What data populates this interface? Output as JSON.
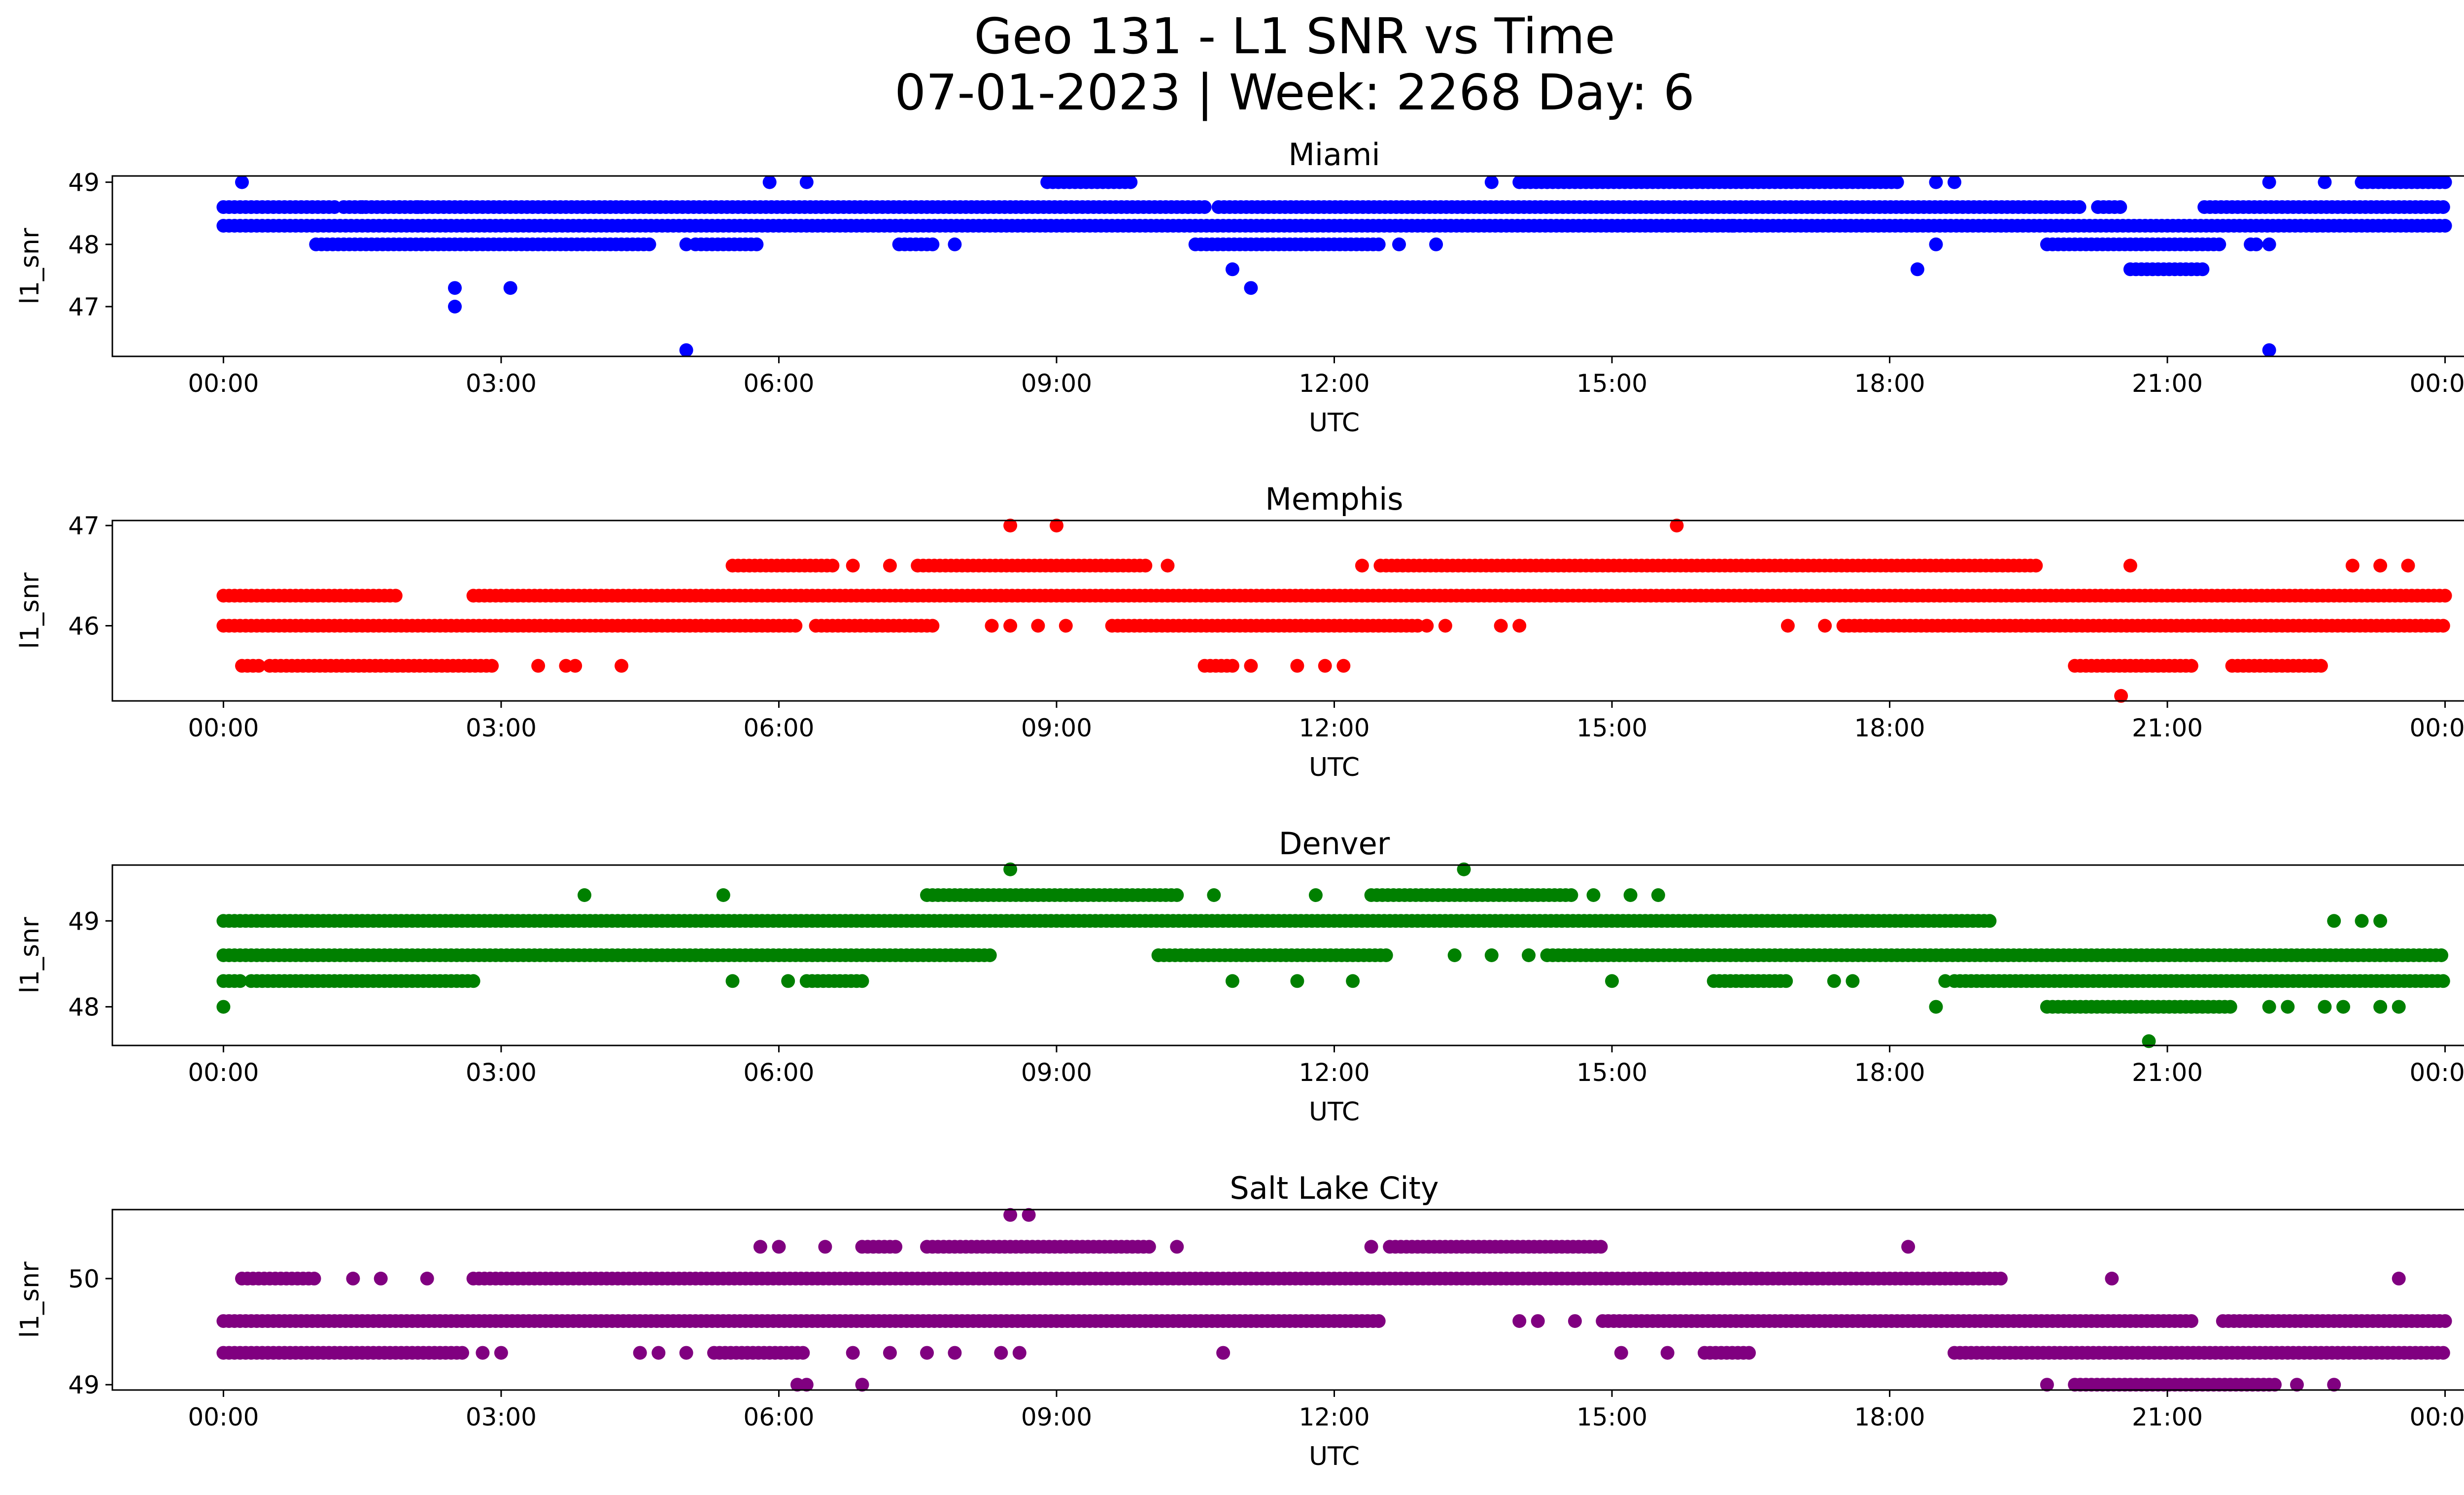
{
  "figure": {
    "title_line1": "Geo 131 - L1 SNR vs Time",
    "title_line2": "07-01-2023 | Week: 2268 Day: 6"
  },
  "chart_data": [
    {
      "type": "scatter",
      "title": "Miami",
      "xlabel": "UTC",
      "ylabel": "l1_snr",
      "color": "#0000ff",
      "x_ticks": [
        "00:00",
        "03:00",
        "06:00",
        "09:00",
        "12:00",
        "15:00",
        "18:00",
        "21:00",
        "00:00"
      ],
      "x_range_hours": [
        -1.2,
        25.2
      ],
      "y_ticks": [
        49,
        47,
        48
      ],
      "y_tick_values": [
        49,
        47,
        48
      ],
      "ylim": [
        46.2,
        49.1
      ],
      "bands": [
        {
          "y": 48.6,
          "segments": [
            [
              0.0,
              1.2
            ],
            [
              1.3,
              10.6
            ],
            [
              10.75,
              20.1
            ],
            [
              20.25,
              20.5
            ],
            [
              21.4,
              24.0
            ]
          ]
        },
        {
          "y": 48.3,
          "segments": [
            [
              0.0,
              24.0
            ]
          ]
        },
        {
          "y": 48.0,
          "segments": [
            [
              1.0,
              4.6
            ],
            [
              5.1,
              5.8
            ],
            [
              7.3,
              7.7
            ],
            [
              10.5,
              12.5
            ],
            [
              19.7,
              21.6
            ],
            [
              21.9,
              22.0
            ]
          ]
        },
        {
          "y": 49.0,
          "segments": [
            [
              8.9,
              9.8
            ],
            [
              14.0,
              18.1
            ],
            [
              23.1,
              24.0
            ]
          ]
        },
        {
          "y": 47.6,
          "segments": [
            [
              20.6,
              21.4
            ]
          ]
        }
      ],
      "points": [
        [
          0.2,
          49.0
        ],
        [
          5.9,
          49.0
        ],
        [
          6.3,
          49.0
        ],
        [
          13.7,
          49.0
        ],
        [
          18.5,
          49.0
        ],
        [
          18.7,
          49.0
        ],
        [
          22.1,
          49.0
        ],
        [
          22.7,
          49.0
        ],
        [
          23.1,
          49.0
        ],
        [
          1.5,
          48.6
        ],
        [
          1.9,
          48.6
        ],
        [
          2.1,
          48.6
        ],
        [
          2.5,
          47.3
        ],
        [
          2.5,
          47.0
        ],
        [
          3.1,
          47.3
        ],
        [
          5.0,
          46.3
        ],
        [
          5.0,
          48.0
        ],
        [
          7.9,
          48.0
        ],
        [
          10.9,
          47.6
        ],
        [
          11.1,
          47.3
        ],
        [
          12.7,
          48.0
        ],
        [
          13.1,
          48.0
        ],
        [
          18.3,
          47.6
        ],
        [
          18.5,
          48.0
        ],
        [
          22.1,
          46.3
        ],
        [
          22.1,
          48.0
        ],
        [
          15.6,
          48.3
        ],
        [
          16.3,
          48.3
        ]
      ]
    },
    {
      "type": "scatter",
      "title": "Memphis",
      "xlabel": "UTC",
      "ylabel": "l1_snr",
      "color": "#ff0000",
      "x_ticks": [
        "00:00",
        "03:00",
        "06:00",
        "09:00",
        "12:00",
        "15:00",
        "18:00",
        "21:00",
        "00:00"
      ],
      "x_range_hours": [
        -1.2,
        25.2
      ],
      "y_ticks": [
        47,
        46
      ],
      "y_tick_values": [
        47,
        46
      ],
      "ylim": [
        45.25,
        47.05
      ],
      "bands": [
        {
          "y": 46.3,
          "segments": [
            [
              0.0,
              1.9
            ],
            [
              2.7,
              24.0
            ]
          ]
        },
        {
          "y": 46.0,
          "segments": [
            [
              0.0,
              6.2
            ],
            [
              6.4,
              7.7
            ],
            [
              9.6,
              12.9
            ],
            [
              17.5,
              24.0
            ]
          ]
        },
        {
          "y": 46.6,
          "segments": [
            [
              5.5,
              6.6
            ],
            [
              7.5,
              10.0
            ],
            [
              12.5,
              19.6
            ]
          ]
        },
        {
          "y": 45.6,
          "segments": [
            [
              0.2,
              0.4
            ],
            [
              0.5,
              2.9
            ],
            [
              10.6,
              10.9
            ],
            [
              20.0,
              21.3
            ],
            [
              21.7,
              22.7
            ]
          ]
        }
      ],
      "points": [
        [
          8.5,
          47.0
        ],
        [
          9.0,
          47.0
        ],
        [
          15.7,
          47.0
        ],
        [
          6.8,
          46.6
        ],
        [
          7.2,
          46.6
        ],
        [
          10.2,
          46.6
        ],
        [
          12.3,
          46.6
        ],
        [
          20.6,
          46.6
        ],
        [
          23.0,
          46.6
        ],
        [
          23.3,
          46.6
        ],
        [
          23.6,
          46.6
        ],
        [
          8.3,
          46.0
        ],
        [
          8.5,
          46.0
        ],
        [
          8.8,
          46.0
        ],
        [
          9.1,
          46.0
        ],
        [
          13.0,
          46.0
        ],
        [
          13.2,
          46.0
        ],
        [
          13.8,
          46.0
        ],
        [
          14.0,
          46.0
        ],
        [
          16.9,
          46.0
        ],
        [
          17.3,
          46.0
        ],
        [
          3.4,
          45.6
        ],
        [
          3.7,
          45.6
        ],
        [
          3.8,
          45.6
        ],
        [
          4.3,
          45.6
        ],
        [
          11.1,
          45.6
        ],
        [
          11.6,
          45.6
        ],
        [
          11.9,
          45.6
        ],
        [
          12.1,
          45.6
        ],
        [
          20.5,
          45.3
        ]
      ]
    },
    {
      "type": "scatter",
      "title": "Denver",
      "xlabel": "UTC",
      "ylabel": "l1_snr",
      "color": "#008000",
      "x_ticks": [
        "00:00",
        "03:00",
        "06:00",
        "09:00",
        "12:00",
        "15:00",
        "18:00",
        "21:00",
        "00:00"
      ],
      "x_range_hours": [
        -1.2,
        25.2
      ],
      "y_ticks": [
        49,
        48
      ],
      "y_tick_values": [
        49,
        48
      ],
      "ylim": [
        47.55,
        49.65
      ],
      "bands": [
        {
          "y": 49.0,
          "segments": [
            [
              0.0,
              19.1
            ]
          ]
        },
        {
          "y": 48.6,
          "segments": [
            [
              0.0,
              8.3
            ],
            [
              10.1,
              12.6
            ],
            [
              14.3,
              24.0
            ]
          ]
        },
        {
          "y": 48.3,
          "segments": [
            [
              0.0,
              0.2
            ],
            [
              0.3,
              2.7
            ],
            [
              6.3,
              6.9
            ],
            [
              16.1,
              16.9
            ],
            [
              18.7,
              24.0
            ]
          ]
        },
        {
          "y": 49.3,
          "segments": [
            [
              7.6,
              10.3
            ],
            [
              12.4,
              14.6
            ]
          ]
        },
        {
          "y": 48.0,
          "segments": [
            [
              19.7,
              21.7
            ]
          ]
        }
      ],
      "points": [
        [
          3.9,
          49.3
        ],
        [
          5.4,
          49.3
        ],
        [
          10.7,
          49.3
        ],
        [
          11.8,
          49.3
        ],
        [
          14.8,
          49.3
        ],
        [
          15.2,
          49.3
        ],
        [
          15.5,
          49.3
        ],
        [
          8.5,
          49.6
        ],
        [
          13.4,
          49.6
        ],
        [
          13.3,
          48.6
        ],
        [
          13.7,
          48.6
        ],
        [
          14.1,
          48.6
        ],
        [
          5.5,
          48.3
        ],
        [
          6.1,
          48.3
        ],
        [
          10.9,
          48.3
        ],
        [
          11.6,
          48.3
        ],
        [
          12.2,
          48.3
        ],
        [
          15.0,
          48.3
        ],
        [
          17.4,
          48.3
        ],
        [
          17.6,
          48.3
        ],
        [
          18.6,
          48.3
        ],
        [
          0.0,
          48.0
        ],
        [
          18.5,
          48.0
        ],
        [
          22.1,
          48.0
        ],
        [
          22.3,
          48.0
        ],
        [
          22.7,
          48.0
        ],
        [
          22.9,
          48.0
        ],
        [
          23.3,
          48.0
        ],
        [
          23.5,
          48.0
        ],
        [
          22.8,
          49.0
        ],
        [
          23.1,
          49.0
        ],
        [
          23.3,
          49.0
        ],
        [
          20.8,
          47.6
        ]
      ]
    },
    {
      "type": "scatter",
      "title": "Salt Lake City",
      "xlabel": "UTC",
      "ylabel": "l1_snr",
      "color": "#800080",
      "x_ticks": [
        "00:00",
        "03:00",
        "06:00",
        "09:00",
        "12:00",
        "15:00",
        "18:00",
        "21:00",
        "00:00"
      ],
      "x_range_hours": [
        -1.2,
        25.2
      ],
      "y_ticks": [
        50,
        49
      ],
      "y_tick_values": [
        50,
        49
      ],
      "ylim": [
        48.95,
        50.65
      ],
      "bands": [
        {
          "y": 50.0,
          "segments": [
            [
              0.2,
              1.0
            ],
            [
              2.7,
              19.2
            ]
          ]
        },
        {
          "y": 49.6,
          "segments": [
            [
              0.0,
              12.5
            ],
            [
              14.9,
              21.3
            ],
            [
              21.6,
              24.0
            ]
          ]
        },
        {
          "y": 49.3,
          "segments": [
            [
              0.0,
              2.6
            ],
            [
              5.3,
              6.3
            ],
            [
              16.0,
              16.5
            ],
            [
              18.7,
              24.0
            ]
          ]
        },
        {
          "y": 50.3,
          "segments": [
            [
              6.9,
              7.3
            ],
            [
              7.6,
              10.0
            ],
            [
              12.6,
              14.9
            ]
          ]
        },
        {
          "y": 49.0,
          "segments": [
            [
              20.0,
              22.2
            ]
          ]
        }
      ],
      "points": [
        [
          1.4,
          50.0
        ],
        [
          1.7,
          50.0
        ],
        [
          2.2,
          50.0
        ],
        [
          20.4,
          50.0
        ],
        [
          23.5,
          50.0
        ],
        [
          5.8,
          50.3
        ],
        [
          6.0,
          50.3
        ],
        [
          6.5,
          50.3
        ],
        [
          10.3,
          50.3
        ],
        [
          12.4,
          50.3
        ],
        [
          18.2,
          50.3
        ],
        [
          8.5,
          50.6
        ],
        [
          8.7,
          50.6
        ],
        [
          2.8,
          49.3
        ],
        [
          3.0,
          49.3
        ],
        [
          4.5,
          49.3
        ],
        [
          4.7,
          49.3
        ],
        [
          5.0,
          49.3
        ],
        [
          6.8,
          49.3
        ],
        [
          7.2,
          49.3
        ],
        [
          7.6,
          49.3
        ],
        [
          7.9,
          49.3
        ],
        [
          8.4,
          49.3
        ],
        [
          8.6,
          49.3
        ],
        [
          10.8,
          49.3
        ],
        [
          15.1,
          49.3
        ],
        [
          15.6,
          49.3
        ],
        [
          14.0,
          49.6
        ],
        [
          14.2,
          49.6
        ],
        [
          14.6,
          49.6
        ],
        [
          6.2,
          49.0
        ],
        [
          6.3,
          49.0
        ],
        [
          6.9,
          49.0
        ],
        [
          19.7,
          49.0
        ],
        [
          22.4,
          49.0
        ],
        [
          22.8,
          49.0
        ]
      ]
    }
  ]
}
